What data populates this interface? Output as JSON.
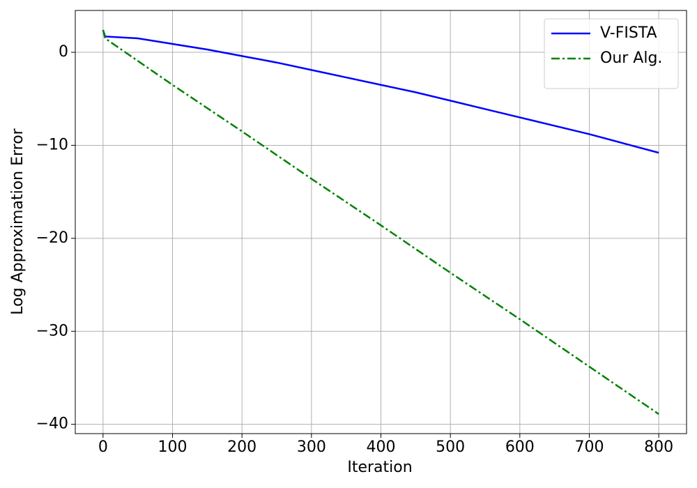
{
  "chart_data": {
    "type": "line",
    "x_label": "Iteration",
    "y_label": "Log Approximation Error",
    "xlim": [
      -40,
      840
    ],
    "ylim": [
      -41,
      4.5
    ],
    "xticks": [
      0,
      100,
      200,
      300,
      400,
      500,
      600,
      700,
      800
    ],
    "yticks": [
      {
        "value": -40,
        "label": "−40"
      },
      {
        "value": -30,
        "label": "−30"
      },
      {
        "value": -20,
        "label": "−20"
      },
      {
        "value": -10,
        "label": "−10"
      },
      0
    ],
    "grid": true,
    "legend": "upper right",
    "series": [
      {
        "name": "V-FISTA",
        "color": "#0000ff",
        "linestyle": "solid",
        "x": [
          0,
          3,
          50,
          100,
          150,
          200,
          250,
          300,
          350,
          400,
          450,
          500,
          550,
          600,
          650,
          700,
          750,
          800
        ],
        "values": [
          2.4,
          1.7,
          1.5,
          0.9,
          0.3,
          -0.4,
          -1.1,
          -1.9,
          -2.7,
          -3.5,
          -4.3,
          -5.2,
          -6.1,
          -7.0,
          -7.9,
          -8.8,
          -9.8,
          -10.8
        ]
      },
      {
        "name": "Our Alg.",
        "color": "#008000",
        "linestyle": "dashdot",
        "x": [
          0,
          3,
          100,
          200,
          300,
          400,
          500,
          600,
          700,
          800
        ],
        "values": [
          2.4,
          1.5,
          -3.5,
          -8.5,
          -13.6,
          -18.6,
          -23.7,
          -28.7,
          -33.8,
          -38.9
        ]
      }
    ]
  }
}
